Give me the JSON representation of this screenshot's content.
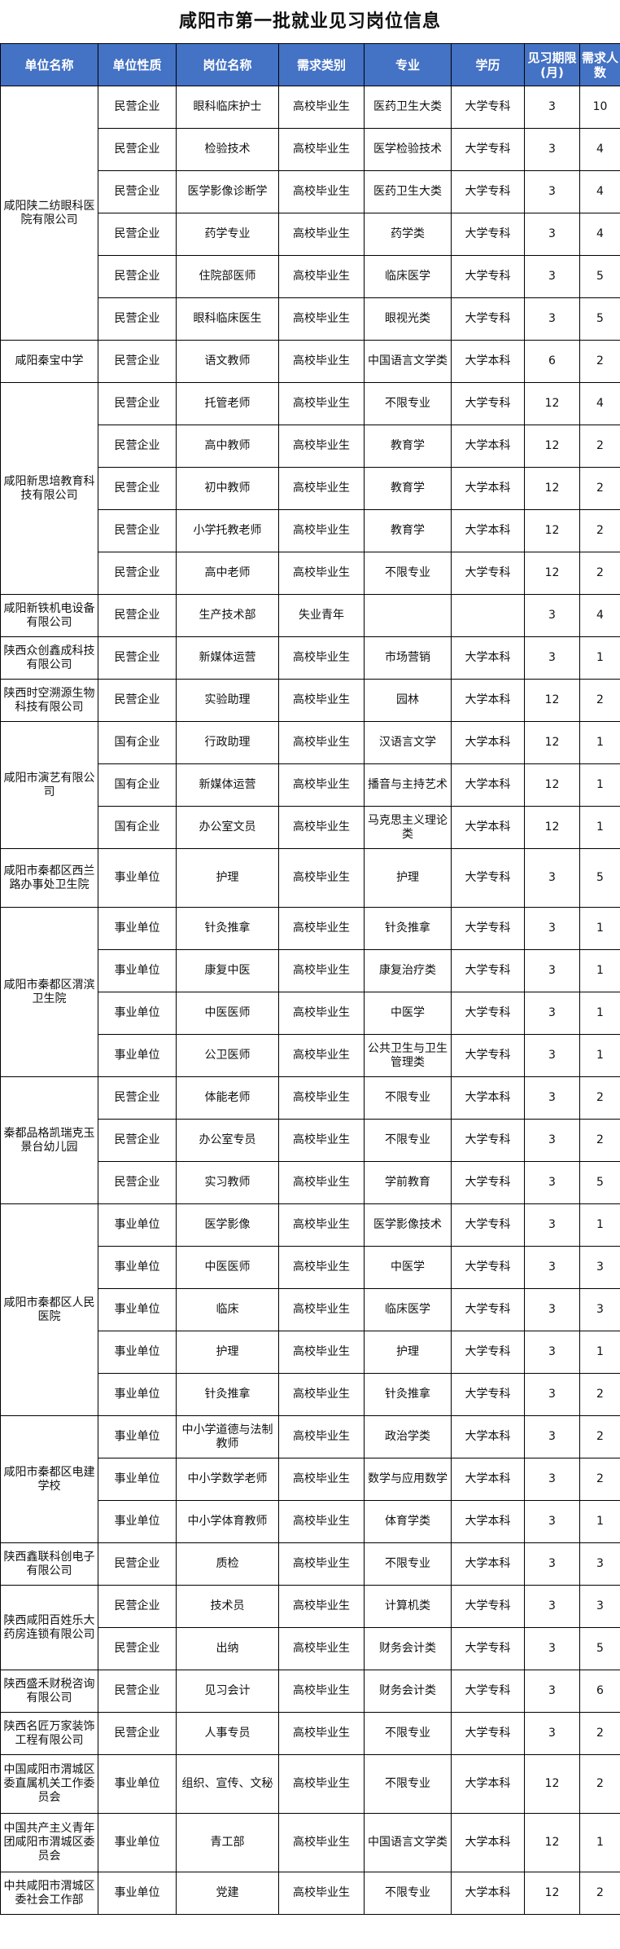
{
  "title": "咸阳市第一批就业见习岗位信息",
  "colors": {
    "header_bg": "#4472C4",
    "header_text": "#FFFFFF"
  },
  "headers": [
    "单位名称",
    "单位性质",
    "岗位名称",
    "需求类别",
    "专业",
    "学历",
    "见习期限(月)",
    "需求人数"
  ],
  "orgs": [
    {
      "name": "咸阳陕二纺眼科医院有限公司",
      "positions": [
        [
          "民营企业",
          "眼科临床护士",
          "高校毕业生",
          "医药卫生大类",
          "大学专科",
          "3",
          "10"
        ],
        [
          "民营企业",
          "检验技术",
          "高校毕业生",
          "医学检验技术",
          "大学专科",
          "3",
          "4"
        ],
        [
          "民营企业",
          "医学影像诊断学",
          "高校毕业生",
          "医药卫生大类",
          "大学专科",
          "3",
          "4"
        ],
        [
          "民营企业",
          "药学专业",
          "高校毕业生",
          "药学类",
          "大学专科",
          "3",
          "4"
        ],
        [
          "民营企业",
          "住院部医师",
          "高校毕业生",
          "临床医学",
          "大学专科",
          "3",
          "5"
        ],
        [
          "民营企业",
          "眼科临床医生",
          "高校毕业生",
          "眼视光类",
          "大学专科",
          "3",
          "5"
        ]
      ]
    },
    {
      "name": "咸阳秦宝中学",
      "positions": [
        [
          "民营企业",
          "语文教师",
          "高校毕业生",
          "中国语言文学类",
          "大学本科",
          "6",
          "2"
        ]
      ]
    },
    {
      "name": "咸阳新思培教育科技有限公司",
      "positions": [
        [
          "民营企业",
          "托管老师",
          "高校毕业生",
          "不限专业",
          "大学专科",
          "12",
          "4"
        ],
        [
          "民营企业",
          "高中教师",
          "高校毕业生",
          "教育学",
          "大学本科",
          "12",
          "2"
        ],
        [
          "民营企业",
          "初中教师",
          "高校毕业生",
          "教育学",
          "大学本科",
          "12",
          "2"
        ],
        [
          "民营企业",
          "小学托教老师",
          "高校毕业生",
          "教育学",
          "大学本科",
          "12",
          "2"
        ],
        [
          "民营企业",
          "高中老师",
          "高校毕业生",
          "不限专业",
          "大学专科",
          "12",
          "2"
        ]
      ]
    },
    {
      "name": "咸阳新铁机电设备有限公司",
      "positions": [
        [
          "民营企业",
          "生产技术部",
          "失业青年",
          "",
          "",
          "3",
          "4"
        ]
      ]
    },
    {
      "name": "陕西众创鑫成科技有限公司",
      "positions": [
        [
          "民营企业",
          "新媒体运营",
          "高校毕业生",
          "市场营销",
          "大学本科",
          "3",
          "1"
        ]
      ]
    },
    {
      "name": "陕西时空溯源生物科技有限公司",
      "positions": [
        [
          "民营企业",
          "实验助理",
          "高校毕业生",
          "园林",
          "大学本科",
          "12",
          "2"
        ]
      ]
    },
    {
      "name": "咸阳市演艺有限公司",
      "positions": [
        [
          "国有企业",
          "行政助理",
          "高校毕业生",
          "汉语言文学",
          "大学本科",
          "12",
          "1"
        ],
        [
          "国有企业",
          "新媒体运营",
          "高校毕业生",
          "播音与主持艺术",
          "大学本科",
          "12",
          "1"
        ],
        [
          "国有企业",
          "办公室文员",
          "高校毕业生",
          "马克思主义理论类",
          "大学本科",
          "12",
          "1"
        ]
      ]
    },
    {
      "name": "咸阳市秦都区西兰路办事处卫生院",
      "tall": true,
      "positions": [
        [
          "事业单位",
          "护理",
          "高校毕业生",
          "护理",
          "大学专科",
          "3",
          "5"
        ]
      ]
    },
    {
      "name": "咸阳市秦都区渭滨卫生院",
      "positions": [
        [
          "事业单位",
          "针灸推拿",
          "高校毕业生",
          "针灸推拿",
          "大学专科",
          "3",
          "1"
        ],
        [
          "事业单位",
          "康复中医",
          "高校毕业生",
          "康复治疗类",
          "大学专科",
          "3",
          "1"
        ],
        [
          "事业单位",
          "中医医师",
          "高校毕业生",
          "中医学",
          "大学专科",
          "3",
          "1"
        ],
        [
          "事业单位",
          "公卫医师",
          "高校毕业生",
          "公共卫生与卫生管理类",
          "大学专科",
          "3",
          "1"
        ]
      ]
    },
    {
      "name": "秦都品格凯瑞克玉景台幼儿园",
      "positions": [
        [
          "民营企业",
          "体能老师",
          "高校毕业生",
          "不限专业",
          "大学本科",
          "3",
          "2"
        ],
        [
          "民营企业",
          "办公室专员",
          "高校毕业生",
          "不限专业",
          "大学专科",
          "3",
          "2"
        ],
        [
          "民营企业",
          "实习教师",
          "高校毕业生",
          "学前教育",
          "大学专科",
          "3",
          "5"
        ]
      ]
    },
    {
      "name": "咸阳市秦都区人民医院",
      "positions": [
        [
          "事业单位",
          "医学影像",
          "高校毕业生",
          "医学影像技术",
          "大学专科",
          "3",
          "1"
        ],
        [
          "事业单位",
          "中医医师",
          "高校毕业生",
          "中医学",
          "大学专科",
          "3",
          "3"
        ],
        [
          "事业单位",
          "临床",
          "高校毕业生",
          "临床医学",
          "大学专科",
          "3",
          "3"
        ],
        [
          "事业单位",
          "护理",
          "高校毕业生",
          "护理",
          "大学专科",
          "3",
          "1"
        ],
        [
          "事业单位",
          "针灸推拿",
          "高校毕业生",
          "针灸推拿",
          "大学专科",
          "3",
          "2"
        ]
      ]
    },
    {
      "name": "咸阳市秦都区电建学校",
      "positions": [
        [
          "事业单位",
          "中小学道德与法制教师",
          "高校毕业生",
          "政治学类",
          "大学本科",
          "3",
          "2"
        ],
        [
          "事业单位",
          "中小学数学老师",
          "高校毕业生",
          "数学与应用数学",
          "大学本科",
          "3",
          "2"
        ],
        [
          "事业单位",
          "中小学体育教师",
          "高校毕业生",
          "体育学类",
          "大学本科",
          "3",
          "1"
        ]
      ]
    },
    {
      "name": "陕西鑫联科创电子有限公司",
      "positions": [
        [
          "民营企业",
          "质检",
          "高校毕业生",
          "不限专业",
          "大学本科",
          "3",
          "3"
        ]
      ]
    },
    {
      "name": "陕西咸阳百姓乐大药房连锁有限公司",
      "positions": [
        [
          "民营企业",
          "技术员",
          "高校毕业生",
          "计算机类",
          "大学专科",
          "3",
          "3"
        ],
        [
          "民营企业",
          "出纳",
          "高校毕业生",
          "财务会计类",
          "大学专科",
          "3",
          "5"
        ]
      ]
    },
    {
      "name": "陕西盛禾财税咨询有限公司",
      "positions": [
        [
          "民营企业",
          "见习会计",
          "高校毕业生",
          "财务会计类",
          "大学专科",
          "3",
          "6"
        ]
      ]
    },
    {
      "name": "陕西名匠万家装饰工程有限公司",
      "positions": [
        [
          "民营企业",
          "人事专员",
          "高校毕业生",
          "不限专业",
          "大学专科",
          "3",
          "2"
        ]
      ]
    },
    {
      "name": "中国咸阳市渭城区委直属机关工作委员会",
      "tall": true,
      "positions": [
        [
          "事业单位",
          "组织、宣传、文秘",
          "高校毕业生",
          "不限专业",
          "大学本科",
          "12",
          "2"
        ]
      ]
    },
    {
      "name": "中国共产主义青年团咸阳市渭城区委员会",
      "tall": true,
      "positions": [
        [
          "事业单位",
          "青工部",
          "高校毕业生",
          "中国语言文学类",
          "大学本科",
          "12",
          "1"
        ]
      ]
    },
    {
      "name": "中共咸阳市渭城区委社会工作部",
      "positions": [
        [
          "事业单位",
          "党建",
          "高校毕业生",
          "不限专业",
          "大学本科",
          "12",
          "2"
        ]
      ]
    }
  ]
}
